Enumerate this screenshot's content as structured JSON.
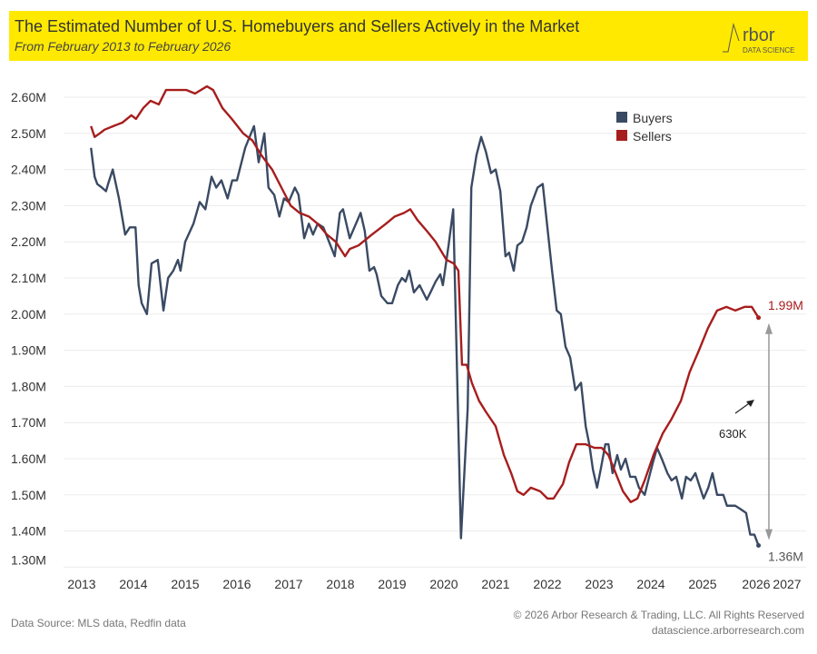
{
  "header": {
    "title": "The Estimated Number of U.S. Homebuyers and Sellers Actively in the Market",
    "subtitle": "From February 2013 to February 2026",
    "logo_text": "Arbor",
    "logo_subtext": "DATA SCIENCE"
  },
  "footer": {
    "source": "Data Source: MLS data, Redfin data",
    "copyright": "© 2026 Arbor Research & Trading, LLC. All Rights Reserved",
    "website": "datascience.arborresearch.com"
  },
  "colors": {
    "buyers": "#3a4a63",
    "sellers": "#a71d1d",
    "header_bg": "#ffe900",
    "grid": "#ececec"
  },
  "chart_data": {
    "type": "line",
    "title": "The Estimated Number of U.S. Homebuyers and Sellers Actively in the Market",
    "subtitle": "From February 2013 to February 2026",
    "xlim": [
      2013,
      2027
    ],
    "ylim": [
      1.3,
      2.6
    ],
    "x_ticks": [
      "2013",
      "2014",
      "2015",
      "2016",
      "2017",
      "2018",
      "2019",
      "2020",
      "2021",
      "2022",
      "2023",
      "2024",
      "2025",
      "2026",
      "2027"
    ],
    "y_ticks": [
      "1.30M",
      "1.40M",
      "1.50M",
      "1.60M",
      "1.70M",
      "1.80M",
      "1.90M",
      "2.00M",
      "2.10M",
      "2.20M",
      "2.30M",
      "2.40M",
      "2.50M",
      "2.60M"
    ],
    "grid": true,
    "legend_position": "top-right",
    "series": [
      {
        "name": "Buyers",
        "unit": "M",
        "points": [
          [
            2013.18,
            2.46
          ],
          [
            2013.25,
            2.38
          ],
          [
            2013.3,
            2.36
          ],
          [
            2013.39,
            2.35
          ],
          [
            2013.47,
            2.34
          ],
          [
            2013.51,
            2.36
          ],
          [
            2013.6,
            2.4
          ],
          [
            2013.72,
            2.32
          ],
          [
            2013.84,
            2.22
          ],
          [
            2013.93,
            2.24
          ],
          [
            2014.04,
            2.24
          ],
          [
            2014.1,
            2.08
          ],
          [
            2014.16,
            2.03
          ],
          [
            2014.26,
            2.0
          ],
          [
            2014.35,
            2.14
          ],
          [
            2014.47,
            2.15
          ],
          [
            2014.58,
            2.01
          ],
          [
            2014.67,
            2.1
          ],
          [
            2014.77,
            2.12
          ],
          [
            2014.86,
            2.15
          ],
          [
            2014.91,
            2.12
          ],
          [
            2015.0,
            2.2
          ],
          [
            2015.16,
            2.25
          ],
          [
            2015.28,
            2.31
          ],
          [
            2015.39,
            2.29
          ],
          [
            2015.51,
            2.38
          ],
          [
            2015.6,
            2.35
          ],
          [
            2015.7,
            2.37
          ],
          [
            2015.82,
            2.32
          ],
          [
            2015.91,
            2.37
          ],
          [
            2016.0,
            2.37
          ],
          [
            2016.16,
            2.46
          ],
          [
            2016.33,
            2.52
          ],
          [
            2016.42,
            2.42
          ],
          [
            2016.53,
            2.5
          ],
          [
            2016.61,
            2.35
          ],
          [
            2016.72,
            2.33
          ],
          [
            2016.82,
            2.27
          ],
          [
            2016.91,
            2.32
          ],
          [
            2017.0,
            2.31
          ],
          [
            2017.12,
            2.35
          ],
          [
            2017.19,
            2.33
          ],
          [
            2017.3,
            2.21
          ],
          [
            2017.39,
            2.25
          ],
          [
            2017.47,
            2.22
          ],
          [
            2017.56,
            2.25
          ],
          [
            2017.67,
            2.24
          ],
          [
            2017.89,
            2.16
          ],
          [
            2017.99,
            2.28
          ],
          [
            2018.05,
            2.29
          ],
          [
            2018.18,
            2.21
          ],
          [
            2018.3,
            2.25
          ],
          [
            2018.39,
            2.28
          ],
          [
            2018.47,
            2.23
          ],
          [
            2018.56,
            2.12
          ],
          [
            2018.65,
            2.13
          ],
          [
            2018.7,
            2.11
          ],
          [
            2018.79,
            2.05
          ],
          [
            2018.91,
            2.03
          ],
          [
            2019.0,
            2.03
          ],
          [
            2019.11,
            2.08
          ],
          [
            2019.19,
            2.1
          ],
          [
            2019.26,
            2.09
          ],
          [
            2019.33,
            2.12
          ],
          [
            2019.42,
            2.06
          ],
          [
            2019.53,
            2.08
          ],
          [
            2019.67,
            2.04
          ],
          [
            2019.74,
            2.06
          ],
          [
            2019.84,
            2.09
          ],
          [
            2019.93,
            2.11
          ],
          [
            2019.98,
            2.08
          ],
          [
            2020.09,
            2.19
          ],
          [
            2020.18,
            2.29
          ],
          [
            2020.33,
            1.38
          ],
          [
            2020.46,
            1.74
          ],
          [
            2020.53,
            2.35
          ],
          [
            2020.63,
            2.44
          ],
          [
            2020.72,
            2.49
          ],
          [
            2020.81,
            2.45
          ],
          [
            2020.91,
            2.39
          ],
          [
            2021.0,
            2.4
          ],
          [
            2021.09,
            2.34
          ],
          [
            2021.19,
            2.16
          ],
          [
            2021.26,
            2.17
          ],
          [
            2021.35,
            2.12
          ],
          [
            2021.42,
            2.19
          ],
          [
            2021.51,
            2.2
          ],
          [
            2021.6,
            2.24
          ],
          [
            2021.68,
            2.3
          ],
          [
            2021.81,
            2.35
          ],
          [
            2021.91,
            2.36
          ],
          [
            2022.0,
            2.24
          ],
          [
            2022.09,
            2.12
          ],
          [
            2022.18,
            2.01
          ],
          [
            2022.26,
            2.0
          ],
          [
            2022.35,
            1.91
          ],
          [
            2022.44,
            1.88
          ],
          [
            2022.54,
            1.79
          ],
          [
            2022.65,
            1.81
          ],
          [
            2022.74,
            1.69
          ],
          [
            2022.81,
            1.64
          ],
          [
            2022.88,
            1.57
          ],
          [
            2022.96,
            1.52
          ],
          [
            2023.03,
            1.57
          ],
          [
            2023.12,
            1.64
          ],
          [
            2023.18,
            1.64
          ],
          [
            2023.26,
            1.56
          ],
          [
            2023.35,
            1.61
          ],
          [
            2023.42,
            1.57
          ],
          [
            2023.51,
            1.6
          ],
          [
            2023.6,
            1.55
          ],
          [
            2023.7,
            1.55
          ],
          [
            2023.77,
            1.52
          ],
          [
            2023.88,
            1.5
          ],
          [
            2023.95,
            1.54
          ],
          [
            2024.04,
            1.59
          ],
          [
            2024.12,
            1.63
          ],
          [
            2024.21,
            1.6
          ],
          [
            2024.32,
            1.56
          ],
          [
            2024.4,
            1.54
          ],
          [
            2024.49,
            1.55
          ],
          [
            2024.6,
            1.49
          ],
          [
            2024.68,
            1.55
          ],
          [
            2024.77,
            1.54
          ],
          [
            2024.86,
            1.56
          ],
          [
            2024.95,
            1.52
          ],
          [
            2025.02,
            1.49
          ],
          [
            2025.11,
            1.52
          ],
          [
            2025.19,
            1.56
          ],
          [
            2025.28,
            1.5
          ],
          [
            2025.4,
            1.5
          ],
          [
            2025.47,
            1.47
          ],
          [
            2025.53,
            1.47
          ],
          [
            2025.63,
            1.47
          ],
          [
            2025.74,
            1.46
          ],
          [
            2025.84,
            1.45
          ],
          [
            2025.92,
            1.39
          ],
          [
            2026.0,
            1.39
          ],
          [
            2026.08,
            1.36
          ]
        ]
      },
      {
        "name": "Sellers",
        "unit": "M",
        "points": [
          [
            2013.18,
            2.52
          ],
          [
            2013.25,
            2.49
          ],
          [
            2013.35,
            2.5
          ],
          [
            2013.44,
            2.51
          ],
          [
            2013.61,
            2.52
          ],
          [
            2013.79,
            2.53
          ],
          [
            2013.96,
            2.55
          ],
          [
            2014.05,
            2.54
          ],
          [
            2014.19,
            2.57
          ],
          [
            2014.33,
            2.59
          ],
          [
            2014.49,
            2.58
          ],
          [
            2014.63,
            2.62
          ],
          [
            2014.84,
            2.62
          ],
          [
            2015.02,
            2.62
          ],
          [
            2015.19,
            2.61
          ],
          [
            2015.42,
            2.63
          ],
          [
            2015.54,
            2.62
          ],
          [
            2015.72,
            2.57
          ],
          [
            2015.9,
            2.54
          ],
          [
            2016.12,
            2.5
          ],
          [
            2016.3,
            2.48
          ],
          [
            2016.47,
            2.44
          ],
          [
            2016.68,
            2.4
          ],
          [
            2016.86,
            2.35
          ],
          [
            2017.04,
            2.3
          ],
          [
            2017.21,
            2.28
          ],
          [
            2017.39,
            2.27
          ],
          [
            2017.56,
            2.25
          ],
          [
            2017.74,
            2.22
          ],
          [
            2017.91,
            2.2
          ],
          [
            2018.09,
            2.16
          ],
          [
            2018.18,
            2.18
          ],
          [
            2018.35,
            2.19
          ],
          [
            2018.61,
            2.22
          ],
          [
            2018.88,
            2.25
          ],
          [
            2019.05,
            2.27
          ],
          [
            2019.23,
            2.28
          ],
          [
            2019.35,
            2.29
          ],
          [
            2019.49,
            2.26
          ],
          [
            2019.67,
            2.23
          ],
          [
            2019.84,
            2.2
          ],
          [
            2020.05,
            2.15
          ],
          [
            2020.19,
            2.14
          ],
          [
            2020.28,
            2.12
          ],
          [
            2020.35,
            1.86
          ],
          [
            2020.44,
            1.86
          ],
          [
            2020.54,
            1.81
          ],
          [
            2020.68,
            1.76
          ],
          [
            2020.81,
            1.73
          ],
          [
            2021.0,
            1.69
          ],
          [
            2021.16,
            1.61
          ],
          [
            2021.3,
            1.56
          ],
          [
            2021.42,
            1.51
          ],
          [
            2021.54,
            1.5
          ],
          [
            2021.68,
            1.52
          ],
          [
            2021.86,
            1.51
          ],
          [
            2022.0,
            1.49
          ],
          [
            2022.12,
            1.49
          ],
          [
            2022.3,
            1.53
          ],
          [
            2022.42,
            1.59
          ],
          [
            2022.56,
            1.64
          ],
          [
            2022.74,
            1.64
          ],
          [
            2022.91,
            1.63
          ],
          [
            2023.05,
            1.63
          ],
          [
            2023.18,
            1.61
          ],
          [
            2023.32,
            1.56
          ],
          [
            2023.46,
            1.51
          ],
          [
            2023.61,
            1.48
          ],
          [
            2023.74,
            1.49
          ],
          [
            2023.88,
            1.54
          ],
          [
            2024.05,
            1.61
          ],
          [
            2024.23,
            1.67
          ],
          [
            2024.4,
            1.71
          ],
          [
            2024.58,
            1.76
          ],
          [
            2024.75,
            1.84
          ],
          [
            2024.93,
            1.9
          ],
          [
            2025.1,
            1.96
          ],
          [
            2025.28,
            2.01
          ],
          [
            2025.46,
            2.02
          ],
          [
            2025.63,
            2.01
          ],
          [
            2025.81,
            2.02
          ],
          [
            2025.95,
            2.02
          ],
          [
            2026.08,
            1.99
          ]
        ]
      }
    ],
    "annotations": {
      "sellers_end_label": "1.99M",
      "buyers_end_label": "1.36M",
      "gap_label": "630K"
    }
  }
}
